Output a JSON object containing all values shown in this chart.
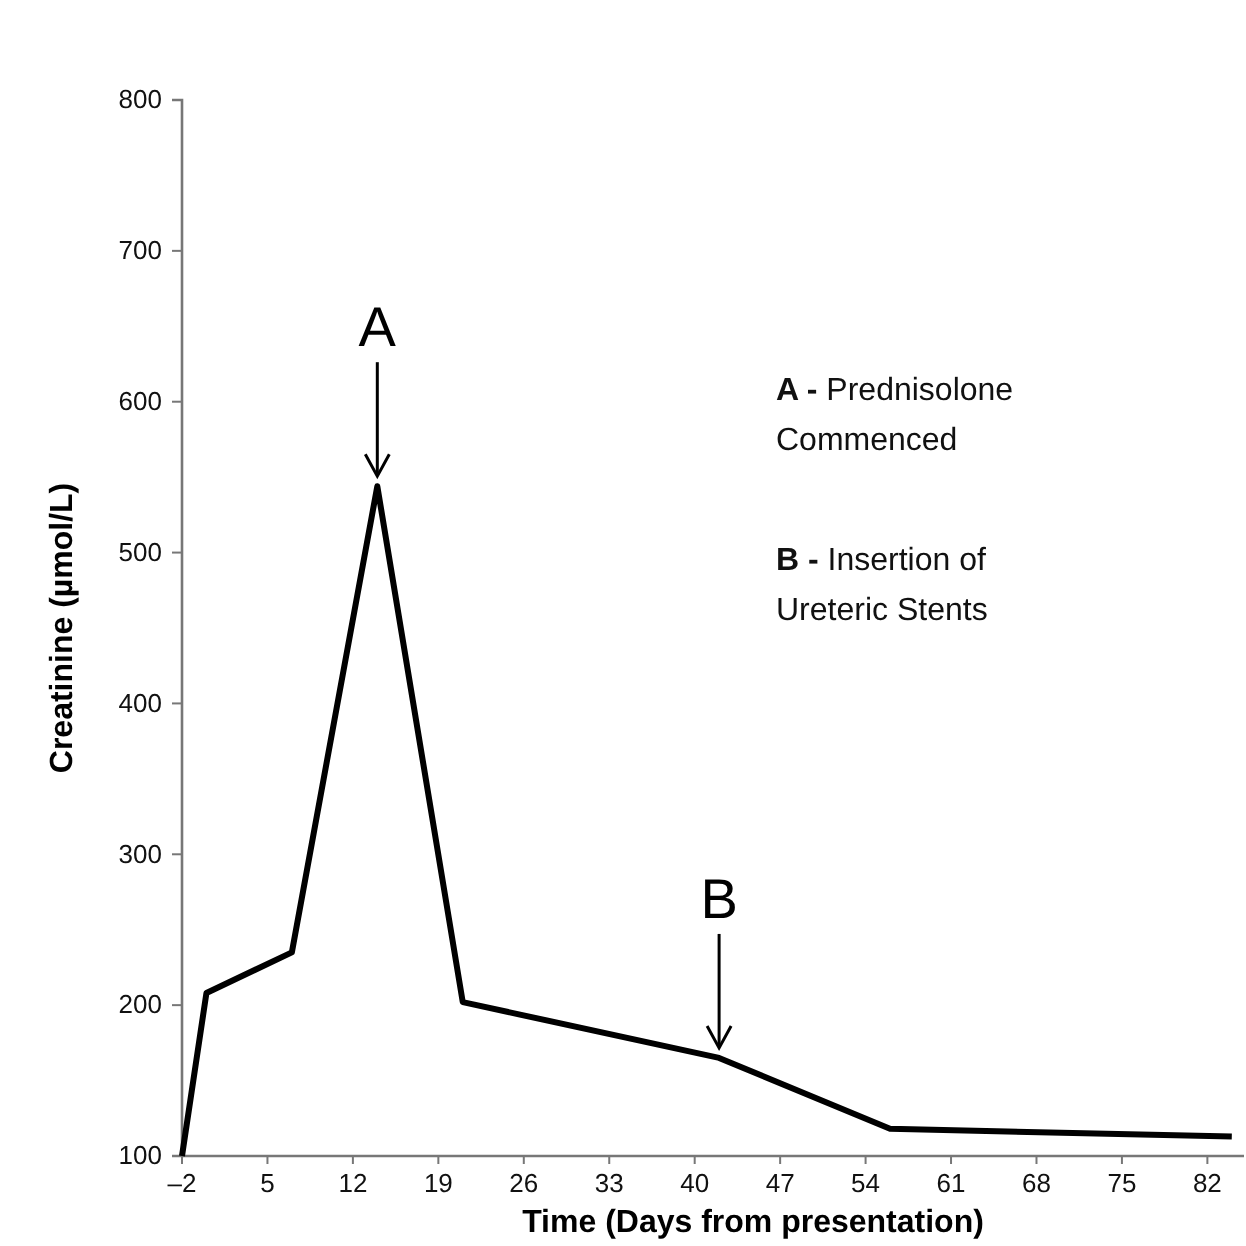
{
  "chart_data": {
    "type": "line",
    "xlabel": "Time  (Days from presentation)",
    "ylabel": "Creatinine (µmol/L)",
    "x": [
      -2,
      0,
      7,
      14,
      21,
      42,
      56,
      84
    ],
    "series": [
      {
        "color": "#000000",
        "values": [
          100,
          208,
          235,
          544,
          202,
          165,
          118,
          113
        ]
      }
    ],
    "xlim": [
      -2,
      85
    ],
    "xticks": [
      {
        "value": -2,
        "label": "–2"
      },
      5,
      12,
      19,
      26,
      33,
      40,
      47,
      54,
      61,
      68,
      75,
      82
    ],
    "ylim": [
      100,
      800
    ],
    "yticks": [
      100,
      200,
      300,
      400,
      500,
      600,
      700,
      800
    ],
    "grid": false,
    "marker": "none",
    "line_style": "solid",
    "annotations": [
      {
        "text": "A",
        "x": 14,
        "y": 544
      },
      {
        "text": "B",
        "x": 42,
        "y": 165
      },
      "A -  Prednisolone Commenced",
      "B -  Insertion of Ureteric Stents"
    ]
  }
}
